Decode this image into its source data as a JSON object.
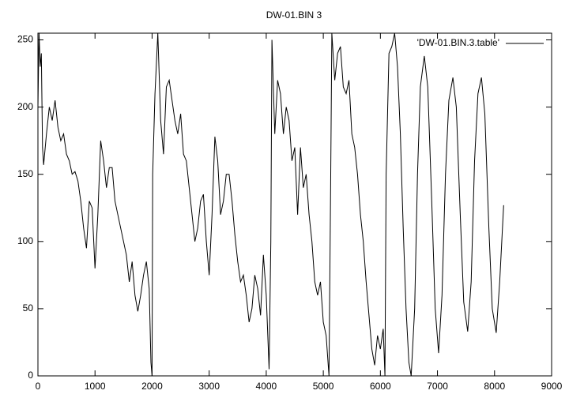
{
  "chart_data": {
    "type": "line",
    "title": "DW-01.BIN 3",
    "x": [
      0,
      20,
      40,
      60,
      80,
      100,
      150,
      200,
      250,
      300,
      350,
      400,
      450,
      500,
      550,
      600,
      650,
      700,
      750,
      800,
      850,
      900,
      950,
      1000,
      1050,
      1100,
      1150,
      1200,
      1250,
      1300,
      1350,
      1400,
      1450,
      1500,
      1550,
      1600,
      1650,
      1700,
      1750,
      1800,
      1850,
      1900,
      1950,
      1980,
      2000,
      2010,
      2050,
      2100,
      2150,
      2200,
      2250,
      2300,
      2350,
      2400,
      2450,
      2500,
      2550,
      2600,
      2650,
      2700,
      2750,
      2800,
      2850,
      2900,
      2950,
      3000,
      3050,
      3100,
      3150,
      3200,
      3250,
      3300,
      3350,
      3400,
      3450,
      3500,
      3550,
      3600,
      3650,
      3700,
      3750,
      3800,
      3850,
      3900,
      3950,
      4000,
      4050,
      4080,
      4100,
      4150,
      4200,
      4250,
      4300,
      4350,
      4400,
      4450,
      4500,
      4550,
      4600,
      4650,
      4700,
      4750,
      4800,
      4850,
      4900,
      4950,
      5000,
      5050,
      5100,
      5130,
      5150,
      5200,
      5250,
      5300,
      5350,
      5400,
      5450,
      5500,
      5550,
      5600,
      5650,
      5700,
      5750,
      5800,
      5850,
      5900,
      5950,
      6000,
      6050,
      6080,
      6100,
      6150,
      6200,
      6250,
      6300,
      6350,
      6400,
      6450,
      6500,
      6540,
      6600,
      6650,
      6700,
      6770,
      6830,
      6900,
      6960,
      7020,
      7080,
      7140,
      7200,
      7270,
      7330,
      7400,
      7460,
      7530,
      7590,
      7650,
      7710,
      7770,
      7830,
      7900,
      7960,
      8030,
      8090,
      8160
    ],
    "series": [
      {
        "name": "'DW-01.BIN.3.table'",
        "color": "#000000",
        "values": [
          200,
          255,
          230,
          240,
          170,
          157,
          180,
          200,
          190,
          205,
          185,
          175,
          180,
          165,
          160,
          150,
          152,
          145,
          130,
          110,
          95,
          130,
          125,
          80,
          120,
          175,
          160,
          140,
          155,
          155,
          130,
          120,
          110,
          100,
          90,
          70,
          85,
          60,
          48,
          60,
          75,
          85,
          65,
          10,
          0,
          150,
          210,
          255,
          190,
          165,
          215,
          220,
          205,
          190,
          180,
          195,
          165,
          160,
          140,
          120,
          100,
          110,
          130,
          135,
          100,
          75,
          120,
          178,
          160,
          120,
          130,
          150,
          150,
          130,
          105,
          85,
          70,
          75,
          60,
          40,
          50,
          75,
          65,
          45,
          90,
          60,
          5,
          100,
          250,
          180,
          220,
          210,
          180,
          200,
          190,
          160,
          170,
          120,
          170,
          140,
          150,
          120,
          100,
          70,
          60,
          70,
          40,
          30,
          0,
          150,
          255,
          220,
          240,
          245,
          215,
          210,
          220,
          180,
          170,
          150,
          120,
          100,
          70,
          45,
          20,
          8,
          30,
          20,
          35,
          0,
          150,
          240,
          245,
          255,
          230,
          180,
          110,
          50,
          10,
          0,
          50,
          150,
          215,
          238,
          215,
          130,
          50,
          17,
          60,
          150,
          205,
          222,
          200,
          120,
          55,
          33,
          70,
          160,
          210,
          222,
          195,
          110,
          50,
          32,
          70,
          127
        ]
      }
    ],
    "xlim": [
      0,
      9000
    ],
    "xticks": [
      0,
      1000,
      2000,
      3000,
      4000,
      5000,
      6000,
      7000,
      8000,
      9000
    ],
    "ylim": [
      0,
      255
    ],
    "yticks": [
      0,
      50,
      100,
      150,
      200,
      250
    ],
    "legend": "upper right"
  }
}
